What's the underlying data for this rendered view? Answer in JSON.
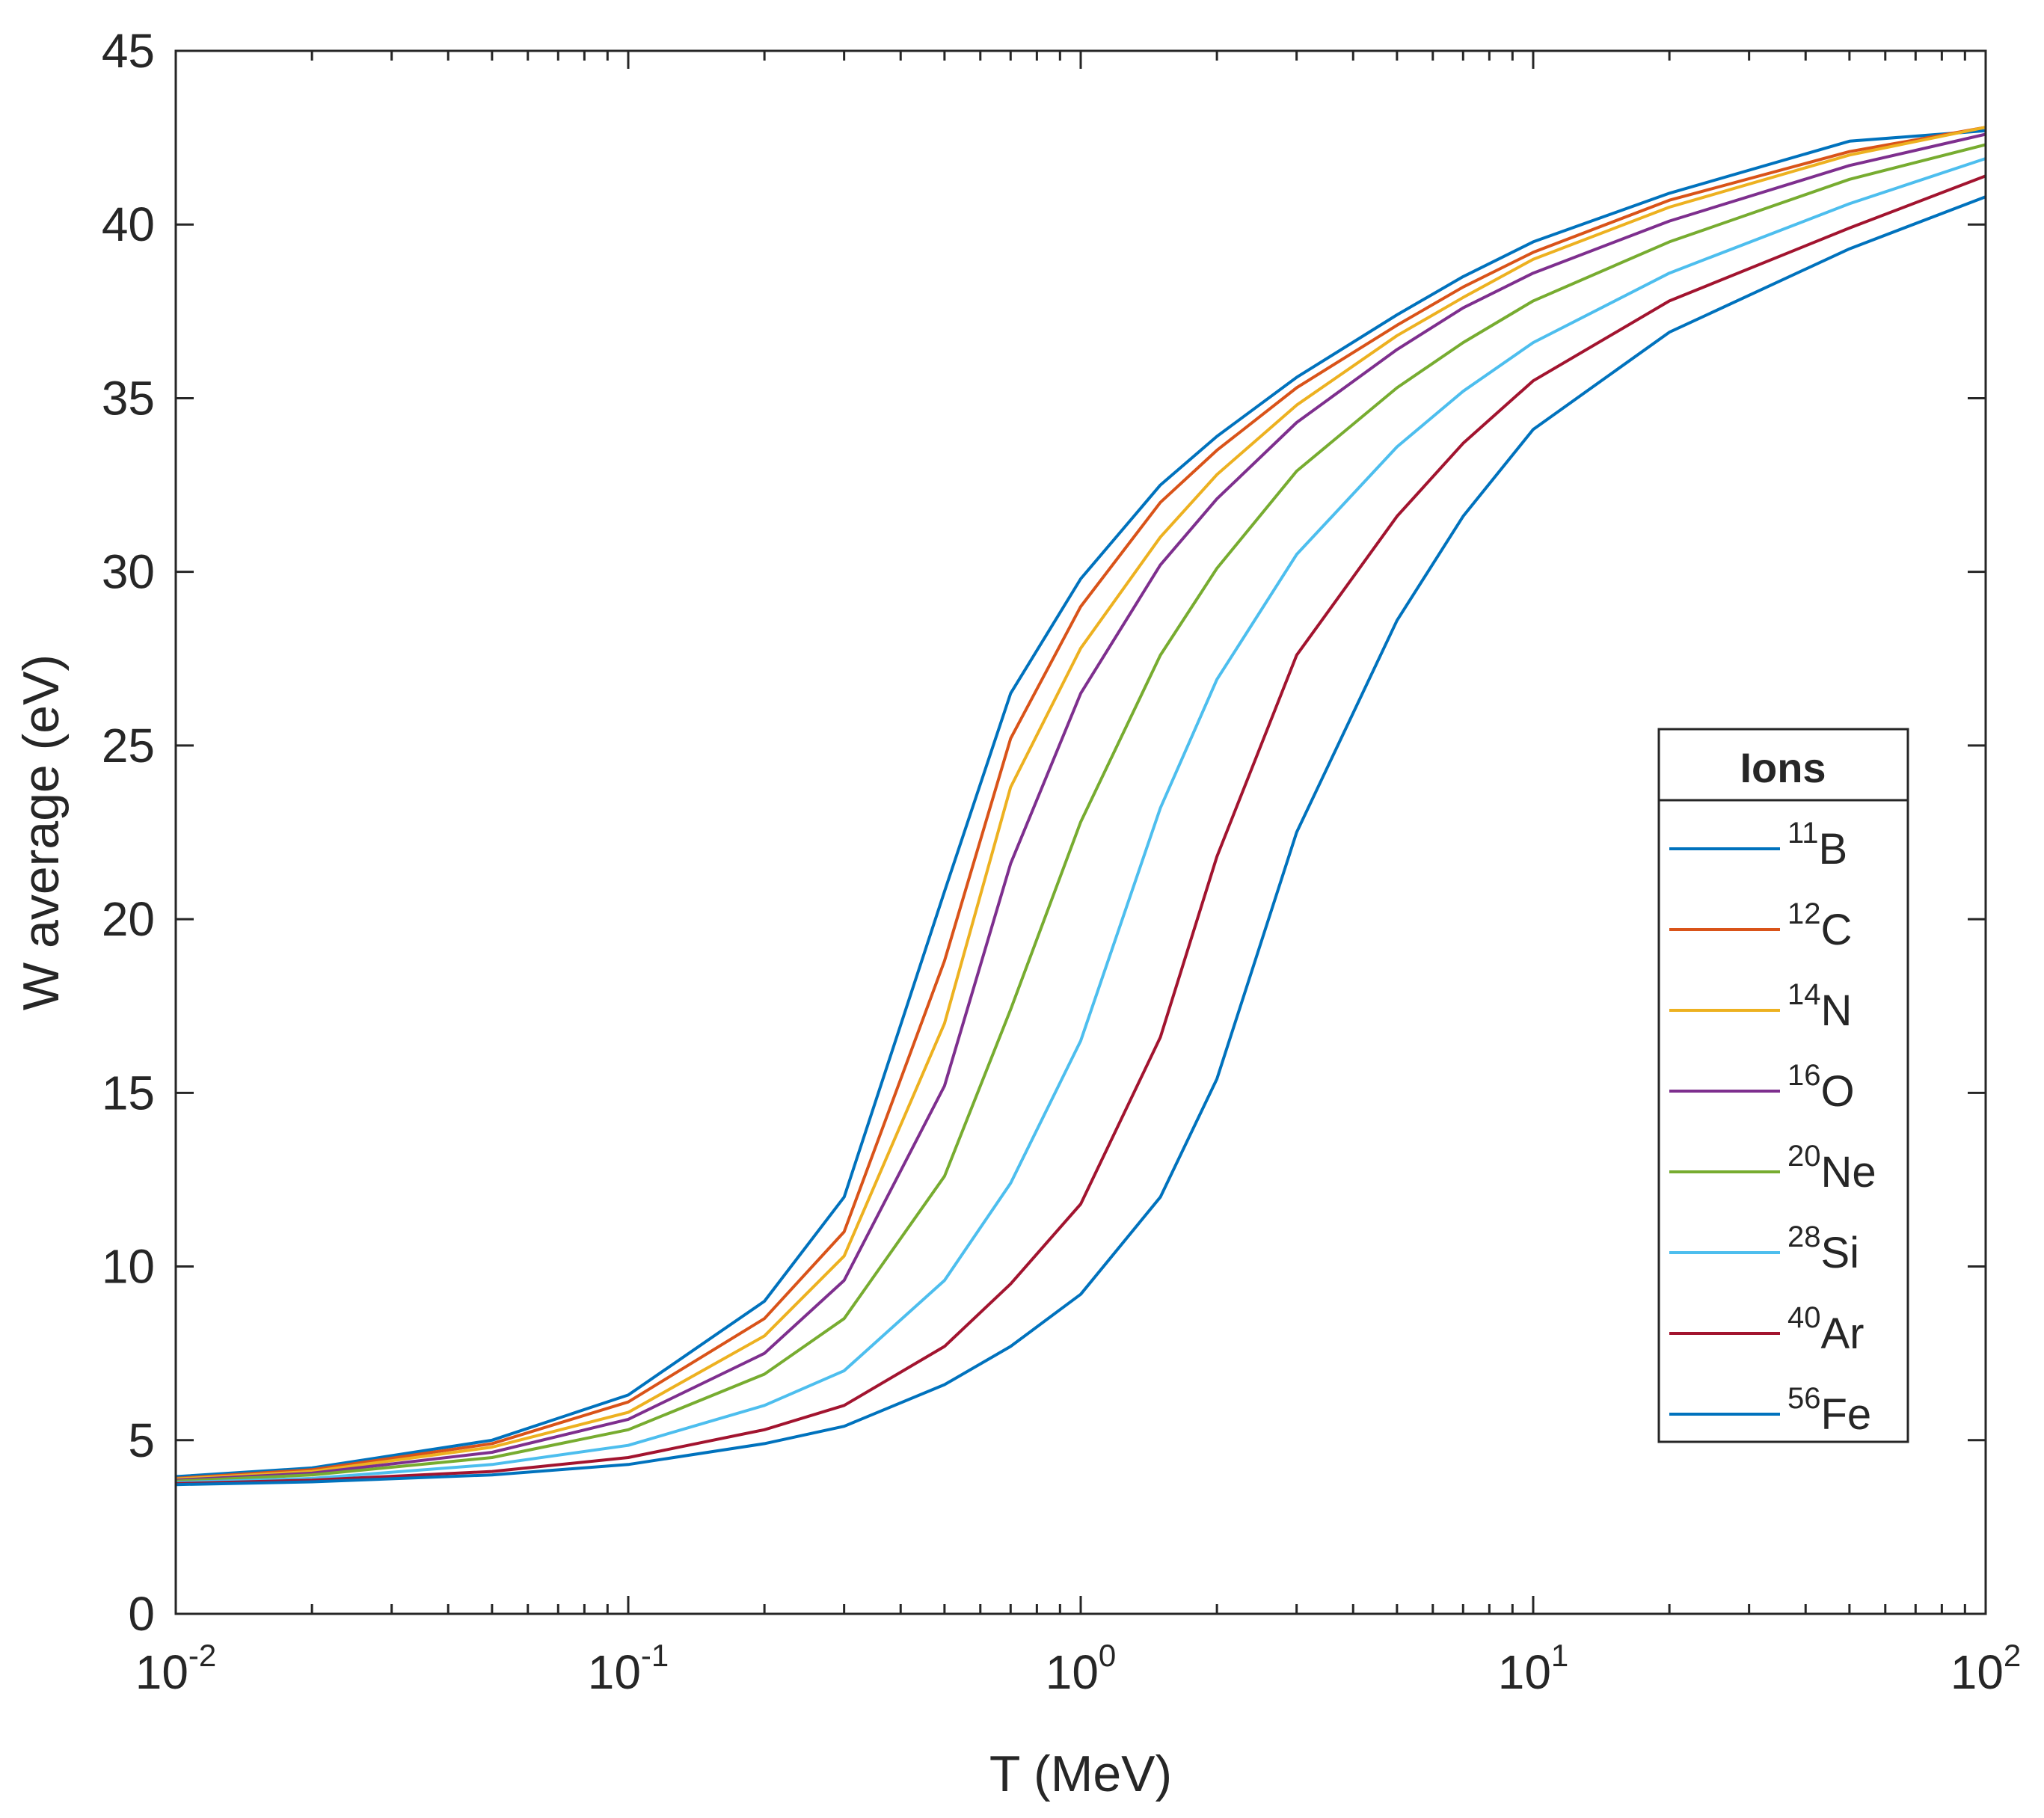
{
  "chart_data": {
    "type": "line",
    "xscale": "log",
    "xlim": [
      0.01,
      100
    ],
    "ylim": [
      0,
      45
    ],
    "xlabel": "T (MeV)",
    "ylabel": "W average (eV)",
    "x_ticks": [
      {
        "value": 0.01,
        "base": "10",
        "exp": "-2"
      },
      {
        "value": 0.1,
        "base": "10",
        "exp": "-1"
      },
      {
        "value": 1,
        "base": "10",
        "exp": "0"
      },
      {
        "value": 10,
        "base": "10",
        "exp": "1"
      },
      {
        "value": 100,
        "base": "10",
        "exp": "2"
      }
    ],
    "y_ticks": [
      0,
      5,
      10,
      15,
      20,
      25,
      30,
      35,
      40,
      45
    ],
    "legend": {
      "title": "Ions",
      "location": "right"
    },
    "x": [
      0.01,
      0.02,
      0.05,
      0.1,
      0.2,
      0.3,
      0.5,
      0.7,
      1,
      1.5,
      2,
      3,
      5,
      7,
      10,
      20,
      50,
      100
    ],
    "series": [
      {
        "name": "B",
        "mass": "11",
        "color": "#0072BD",
        "values": [
          3.95,
          4.2,
          5.0,
          6.3,
          9.0,
          12.0,
          20.8,
          26.5,
          29.8,
          32.5,
          33.9,
          35.6,
          37.4,
          38.5,
          39.5,
          40.9,
          42.4,
          42.7
        ]
      },
      {
        "name": "C",
        "mass": "12",
        "color": "#D95319",
        "values": [
          3.9,
          4.15,
          4.9,
          6.1,
          8.5,
          11.0,
          18.8,
          25.2,
          29.0,
          32.0,
          33.5,
          35.3,
          37.1,
          38.2,
          39.2,
          40.7,
          42.1,
          42.8
        ]
      },
      {
        "name": "N",
        "mass": "14",
        "color": "#EDB120",
        "values": [
          3.88,
          4.1,
          4.8,
          5.8,
          8.0,
          10.3,
          17.0,
          23.8,
          27.8,
          31.0,
          32.8,
          34.8,
          36.8,
          37.9,
          39.0,
          40.5,
          42.0,
          42.8
        ]
      },
      {
        "name": "O",
        "mass": "16",
        "color": "#7E2F8E",
        "values": [
          3.85,
          4.05,
          4.65,
          5.6,
          7.5,
          9.6,
          15.2,
          21.6,
          26.5,
          30.2,
          32.1,
          34.3,
          36.4,
          37.6,
          38.6,
          40.1,
          41.7,
          42.6
        ]
      },
      {
        "name": "Ne",
        "mass": "20",
        "color": "#77AC30",
        "values": [
          3.82,
          4.0,
          4.5,
          5.3,
          6.9,
          8.5,
          12.6,
          17.4,
          22.8,
          27.6,
          30.1,
          32.9,
          35.3,
          36.6,
          37.8,
          39.5,
          41.3,
          42.3
        ]
      },
      {
        "name": "Si",
        "mass": "28",
        "color": "#4DBEEE",
        "values": [
          3.78,
          3.9,
          4.3,
          4.85,
          6.0,
          7.0,
          9.6,
          12.4,
          16.5,
          23.2,
          26.9,
          30.5,
          33.6,
          35.2,
          36.6,
          38.6,
          40.6,
          41.9
        ]
      },
      {
        "name": "Ar",
        "mass": "40",
        "color": "#A2142F",
        "values": [
          3.75,
          3.85,
          4.1,
          4.5,
          5.3,
          6.0,
          7.7,
          9.5,
          11.8,
          16.6,
          21.8,
          27.6,
          31.6,
          33.7,
          35.5,
          37.8,
          39.9,
          41.4
        ]
      },
      {
        "name": "Fe",
        "mass": "56",
        "color": "#0072BD",
        "values": [
          3.72,
          3.8,
          4.0,
          4.3,
          4.9,
          5.4,
          6.6,
          7.7,
          9.2,
          12.0,
          15.4,
          22.5,
          28.6,
          31.6,
          34.1,
          36.9,
          39.3,
          40.8
        ]
      }
    ]
  }
}
